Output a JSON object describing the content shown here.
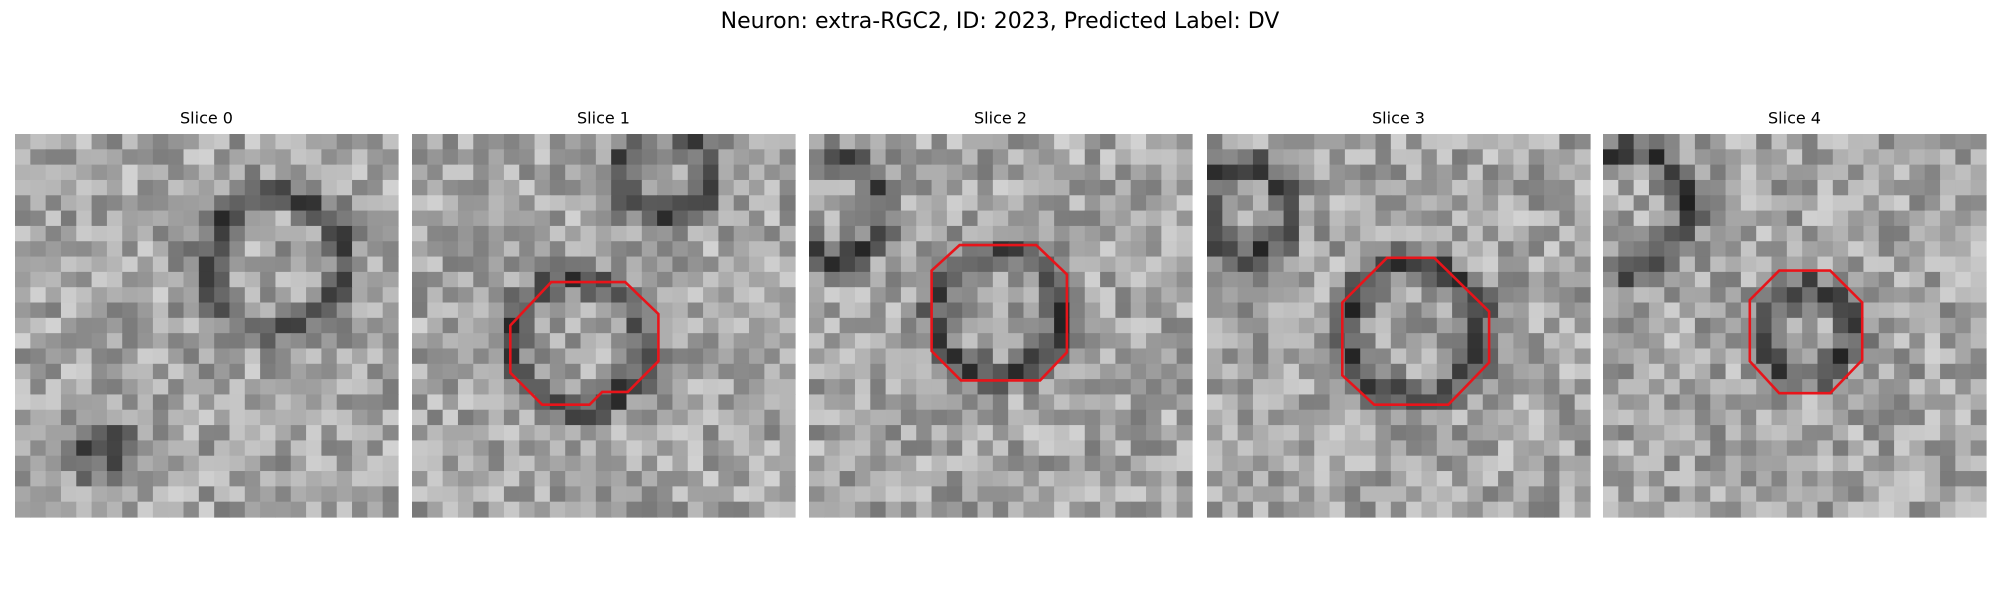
{
  "title": "Neuron: extra-RGC2, ID: 2023, Predicted Label: DV",
  "panels": [
    {
      "title": "Slice 0"
    },
    {
      "title": "Slice 1"
    },
    {
      "title": "Slice 2"
    },
    {
      "title": "Slice 3"
    },
    {
      "title": "Slice 4"
    }
  ]
}
